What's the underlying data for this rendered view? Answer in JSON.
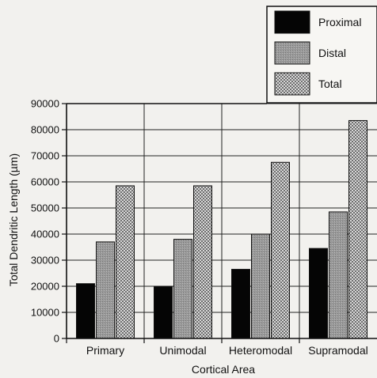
{
  "chart_data": {
    "type": "bar",
    "categories": [
      "Primary",
      "Unimodal",
      "Heteromodal",
      "Supramodal"
    ],
    "series": [
      {
        "name": "Proximal",
        "values": [
          21000,
          20000,
          26500,
          34500
        ],
        "pattern": "solid"
      },
      {
        "name": "Distal",
        "values": [
          37000,
          38000,
          40000,
          48500
        ],
        "pattern": "gray"
      },
      {
        "name": "Total",
        "values": [
          58500,
          58500,
          67500,
          83500
        ],
        "pattern": "checker"
      }
    ],
    "title": "",
    "xlabel": "Cortical Area",
    "ylabel": "Total Dendritic Length (µm)",
    "ylim": [
      0,
      90000
    ],
    "yticks": [
      0,
      10000,
      20000,
      30000,
      40000,
      50000,
      60000,
      70000,
      80000,
      90000
    ],
    "ytick_labels": [
      "0",
      "10000",
      "20000",
      "30000",
      "40000",
      "50000",
      "60000",
      "70000",
      "80000",
      "90000"
    ],
    "grid": true,
    "legend_position": "top-right"
  }
}
